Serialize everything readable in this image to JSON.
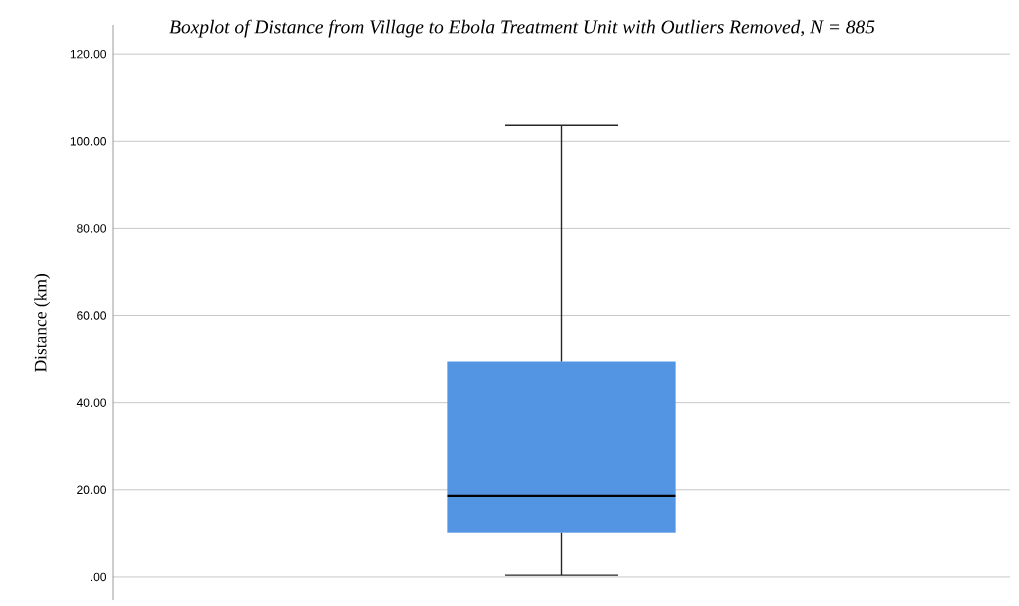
{
  "chart_data": {
    "type": "box",
    "title": "Boxplot of Distance from Village to Ebola Treatment Unit with Outliers Removed, N = 885",
    "ylabel": "Distance (km)",
    "categories": [
      null
    ],
    "boxes": [
      {
        "low": 0.4,
        "q1": 10.2,
        "median": 18.6,
        "q3": 49.4,
        "high": 103.7
      }
    ],
    "color": "#5495e3",
    "ylim": [
      -5.3,
      126.7
    ],
    "yticks": [
      {
        "value": 0,
        "label": ".00"
      },
      {
        "value": 20,
        "label": "20.00"
      },
      {
        "value": 40,
        "label": "40.00"
      },
      {
        "value": 60,
        "label": "60.00"
      },
      {
        "value": 80,
        "label": "80.00"
      },
      {
        "value": 100,
        "label": "100.00"
      },
      {
        "value": 120,
        "label": "120.00"
      }
    ],
    "grid": "y"
  }
}
